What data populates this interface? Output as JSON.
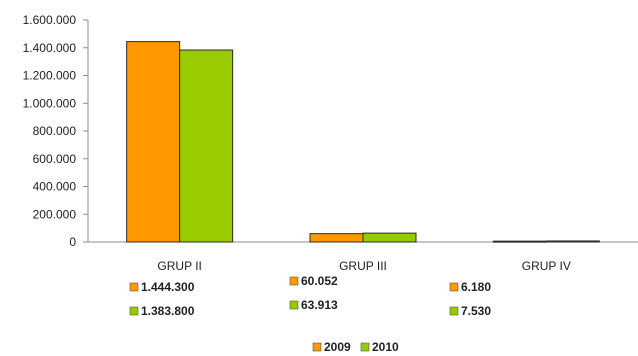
{
  "chart_data": {
    "type": "bar",
    "categories": [
      "GRUP II",
      "GRUP III",
      "GRUP IV"
    ],
    "series": [
      {
        "name": "2009",
        "color": "#FF9900",
        "values": [
          1444300,
          60052,
          6180
        ],
        "labels": [
          "1.444.300",
          "60.052",
          "6.180"
        ]
      },
      {
        "name": "2010",
        "color": "#99CC00",
        "values": [
          1383800,
          63913,
          7530
        ],
        "labels": [
          "1.383.800",
          "63.913",
          "7.530"
        ]
      }
    ],
    "ylim": [
      0,
      1600000
    ],
    "yticks": [
      0,
      200000,
      400000,
      600000,
      800000,
      1000000,
      1200000,
      1400000,
      1600000
    ],
    "ytick_labels": [
      "0",
      "200.000",
      "400.000",
      "600.000",
      "800.000",
      "1.000.000",
      "1.200.000",
      "1.400.000",
      "1.600.000"
    ],
    "grid": false,
    "legend": "bottom",
    "title": "",
    "xlabel": "",
    "ylabel": ""
  }
}
